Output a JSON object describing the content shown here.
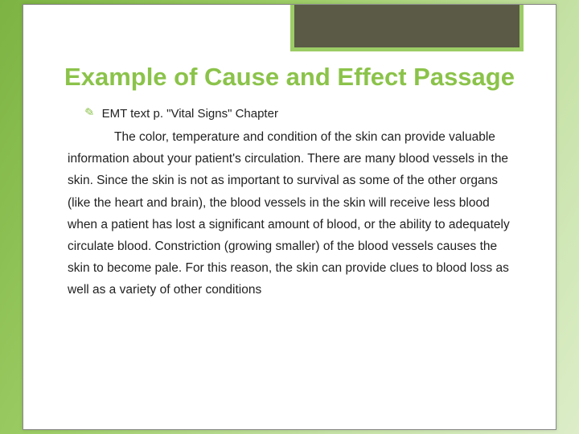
{
  "slide": {
    "title": "Example of Cause and Effect Passage",
    "bullet_glyph": "✎",
    "source_line": "EMT text p. \"Vital Signs\"  Chapter",
    "passage": "The color, temperature and condition of the skin can provide valuable information about your patient's circulation.  There are many blood vessels in the skin.  Since the skin is not as important to survival as some of the other organs (like the heart and brain), the blood vessels in the skin will receive less blood when a patient has lost a significant amount of blood, or the ability to adequately circulate blood.  Constriction (growing smaller) of the blood vessels causes the skin to become pale.  For this reason, the skin can provide clues to blood loss as well as a variety of other conditions"
  },
  "style": {
    "title_color": "#8bc34a",
    "title_fontsize": 31,
    "body_fontsize": 15.5,
    "body_color": "#222222",
    "decor_fill": "#5a5a47",
    "decor_border": "#9ccc65",
    "panel_bg": "#ffffff",
    "bg_gradient": [
      "#7cb342",
      "#9ccc65",
      "#c5e1a5",
      "#dcedc8"
    ]
  }
}
